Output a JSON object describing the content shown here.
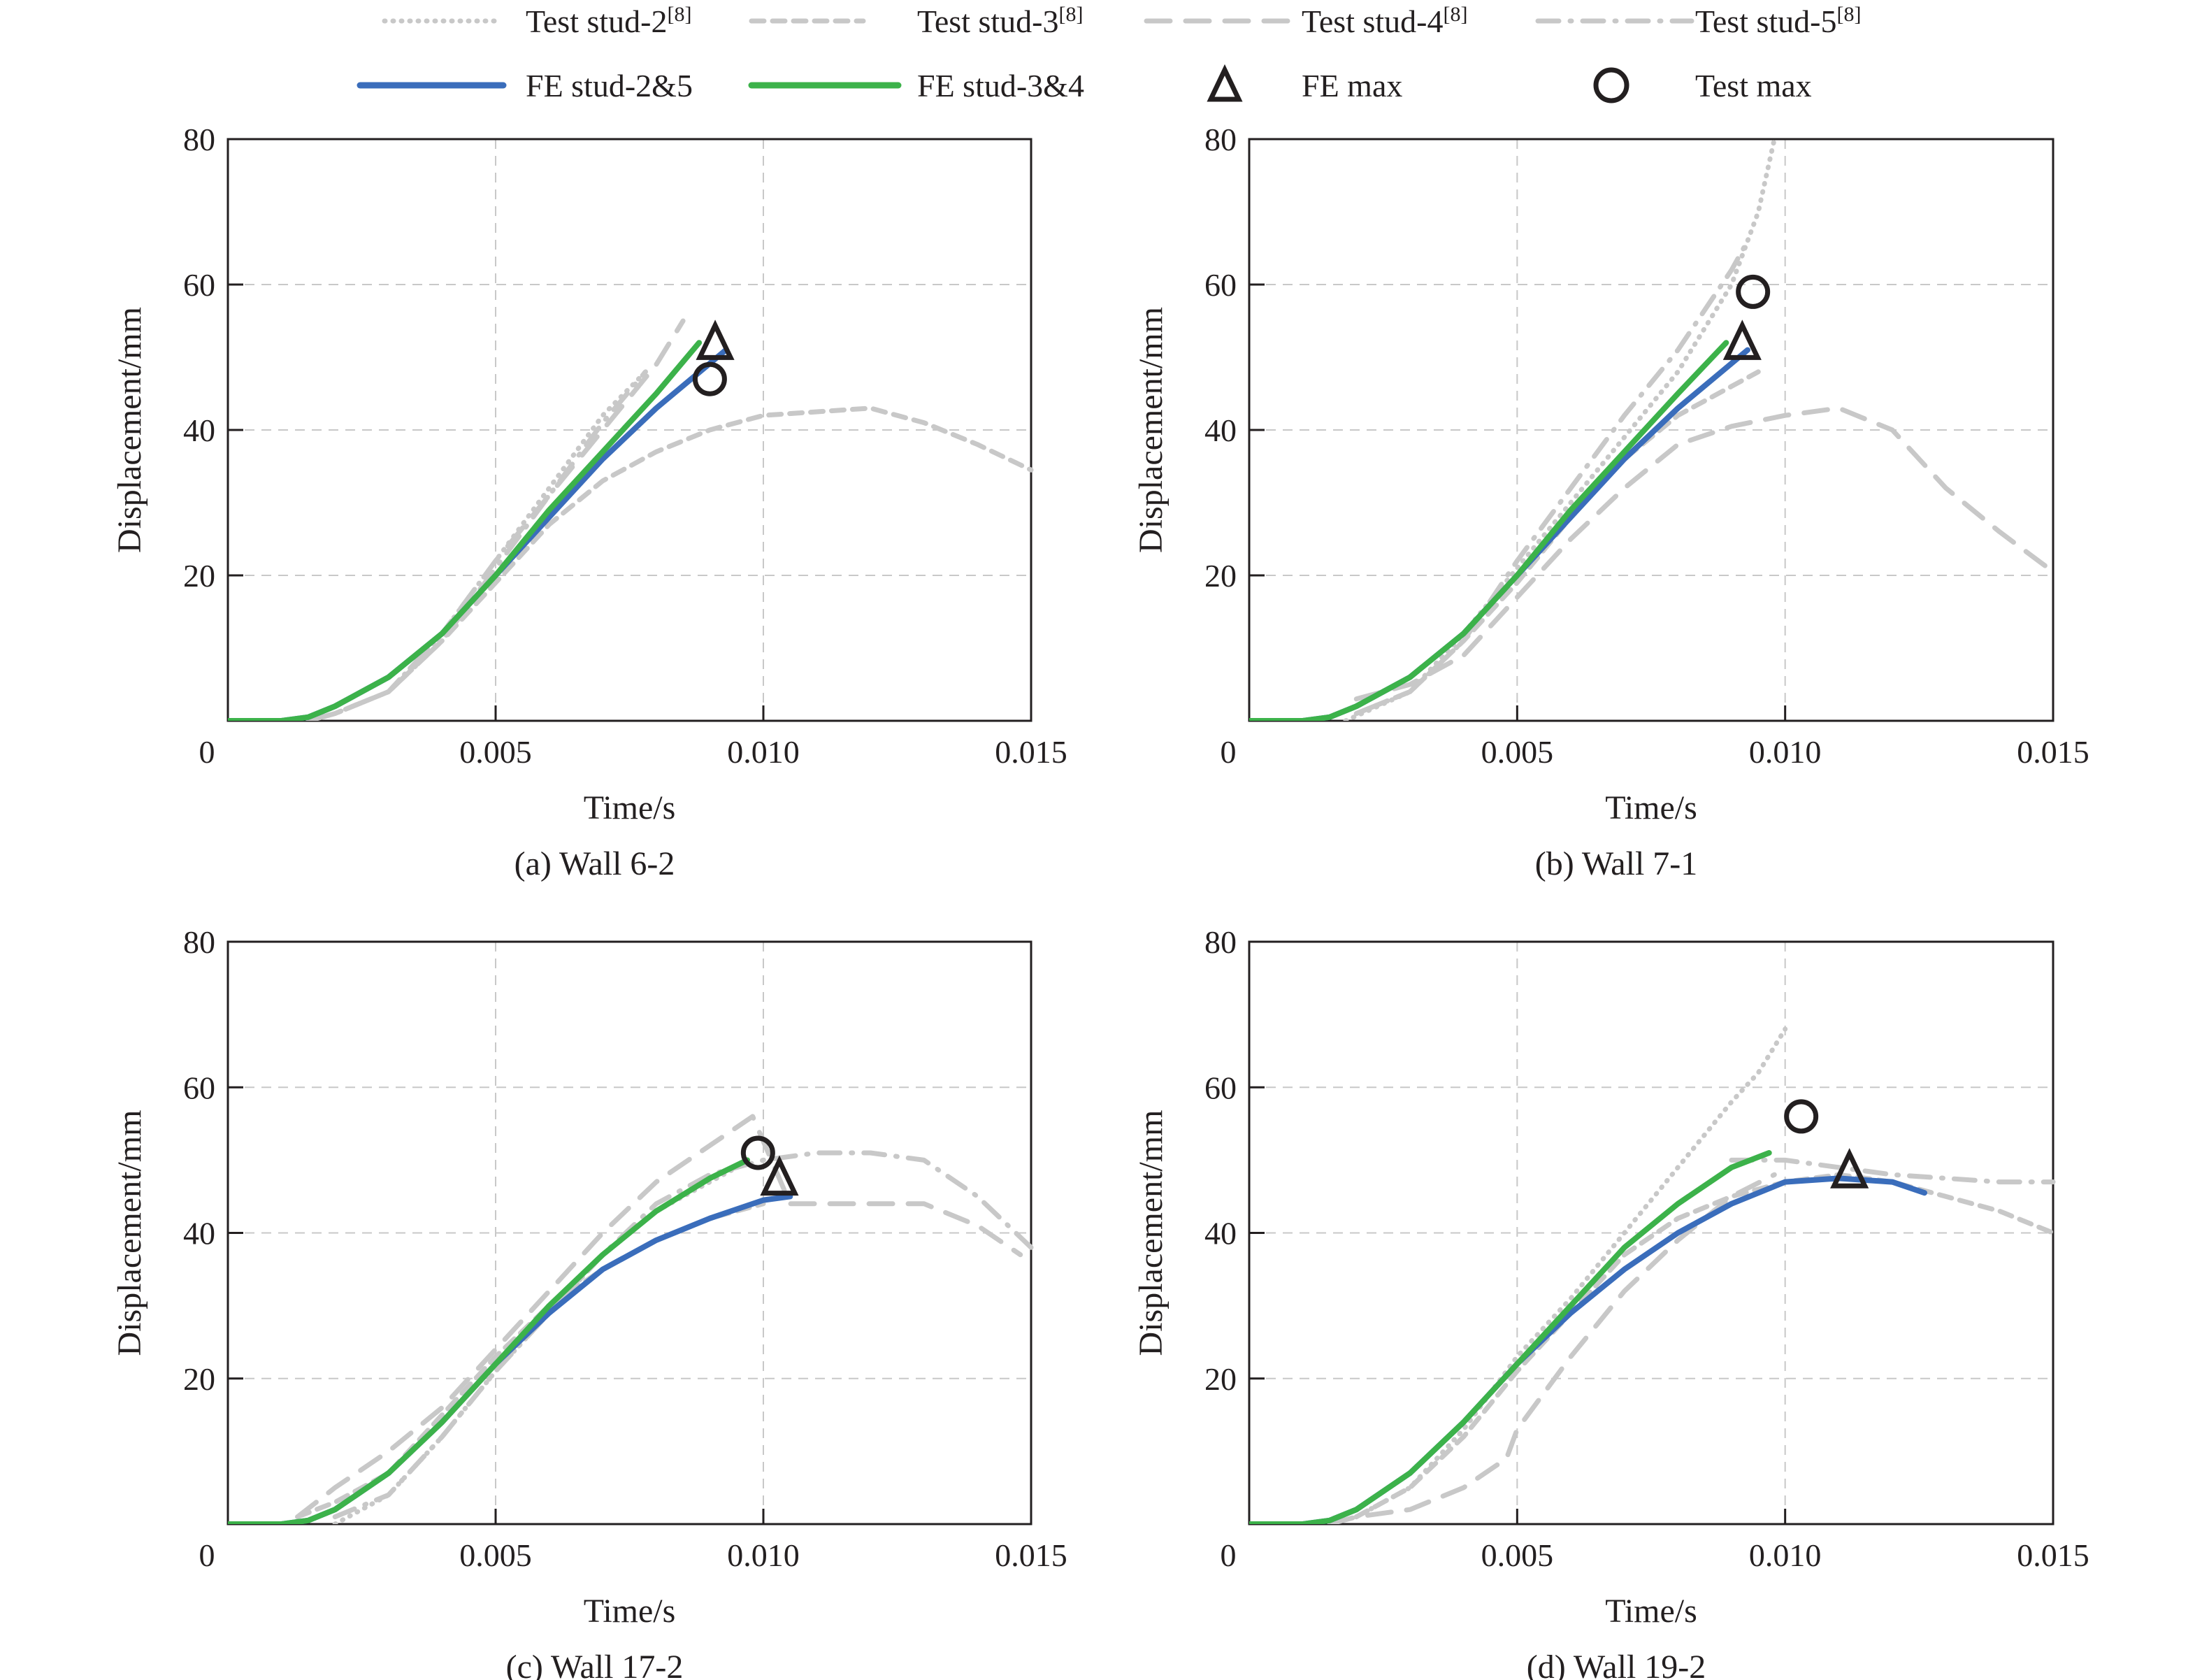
{
  "legend": {
    "items": [
      {
        "label": "Test stud-2",
        "sup": "[8]",
        "style": "dotted",
        "color": "#c8c8c8"
      },
      {
        "label": "Test stud-3",
        "sup": "[8]",
        "style": "short-dash",
        "color": "#c8c8c8"
      },
      {
        "label": "Test stud-4",
        "sup": "[8]",
        "style": "long-dash",
        "color": "#c8c8c8"
      },
      {
        "label": "Test stud-5",
        "sup": "[8]",
        "style": "dash-dot",
        "color": "#c8c8c8"
      },
      {
        "label": "FE stud-2&5",
        "sup": "",
        "style": "solid",
        "color": "#3a6dbb"
      },
      {
        "label": "FE stud-3&4",
        "sup": "",
        "style": "solid",
        "color": "#3cb24a"
      },
      {
        "label": "FE max",
        "sup": "",
        "style": "triangle-marker",
        "color": "#231f20"
      },
      {
        "label": "Test max",
        "sup": "",
        "style": "circle-marker",
        "color": "#231f20"
      }
    ]
  },
  "chart_data": [
    {
      "type": "line",
      "caption": "(a) Wall 6-2",
      "xlabel": "Time/s",
      "ylabel": "Displacement/mm",
      "xlim": [
        0,
        0.015
      ],
      "ylim": [
        0,
        80
      ],
      "xticks": [
        "0",
        "0.005",
        "0.010",
        "0.015"
      ],
      "yticks": [
        "20",
        "40",
        "60",
        "80"
      ],
      "grid": true,
      "series": [
        {
          "name": "Test stud-2",
          "style": "dotted",
          "x": [
            0.0015,
            0.002,
            0.003,
            0.004,
            0.005,
            0.006,
            0.007,
            0.0078
          ],
          "y": [
            0,
            1,
            4,
            12,
            22,
            32,
            42,
            48
          ]
        },
        {
          "name": "Test stud-3",
          "style": "short-dash",
          "x": [
            0.0015,
            0.002,
            0.003,
            0.004,
            0.005,
            0.006,
            0.007,
            0.008,
            0.009,
            0.01,
            0.011,
            0.012,
            0.013,
            0.014,
            0.015
          ],
          "y": [
            0,
            1,
            4,
            11,
            19,
            27,
            33,
            37,
            40,
            42,
            42.5,
            43,
            41,
            38,
            34.5
          ]
        },
        {
          "name": "Test stud-4",
          "style": "long-dash",
          "x": [
            0.0015,
            0.002,
            0.003,
            0.004,
            0.005,
            0.006,
            0.007,
            0.008,
            0.0085
          ],
          "y": [
            0,
            1,
            4,
            12,
            22,
            31,
            40,
            49,
            55
          ]
        },
        {
          "name": "Test stud-5",
          "style": "dash-dot",
          "x": [
            0.0015,
            0.002,
            0.003,
            0.004,
            0.005,
            0.006,
            0.007,
            0.0078
          ],
          "y": [
            0,
            1,
            4,
            11,
            21,
            31,
            41,
            48
          ]
        },
        {
          "name": "FE stud-2&5",
          "style": "solid",
          "x": [
            0,
            0.001,
            0.0015,
            0.002,
            0.003,
            0.004,
            0.005,
            0.006,
            0.007,
            0.008,
            0.0093
          ],
          "y": [
            0,
            0,
            0.5,
            2,
            6,
            12,
            20,
            28,
            36,
            43,
            51
          ]
        },
        {
          "name": "FE stud-3&4",
          "style": "solid",
          "x": [
            0,
            0.001,
            0.0015,
            0.002,
            0.003,
            0.004,
            0.005,
            0.006,
            0.007,
            0.008,
            0.0088
          ],
          "y": [
            0,
            0,
            0.5,
            2,
            6,
            12,
            20,
            29,
            37,
            45,
            52
          ]
        }
      ],
      "markers": {
        "fe_max": {
          "x": 0.0091,
          "y": 51.5
        },
        "test_max": {
          "x": 0.009,
          "y": 47
        }
      }
    },
    {
      "type": "line",
      "caption": "(b) Wall 7-1",
      "xlabel": "Time/s",
      "ylabel": "Displacement/mm",
      "xlim": [
        0,
        0.015
      ],
      "ylim": [
        0,
        80
      ],
      "xticks": [
        "0",
        "0.005",
        "0.010",
        "0.015"
      ],
      "yticks": [
        "20",
        "40",
        "60",
        "80"
      ],
      "grid": true,
      "series": [
        {
          "name": "Test stud-2",
          "style": "dotted",
          "x": [
            0.0018,
            0.003,
            0.004,
            0.005,
            0.006,
            0.007,
            0.008,
            0.009,
            0.0095,
            0.0098
          ],
          "y": [
            0,
            4,
            12,
            21,
            30,
            39,
            48,
            60,
            70,
            80
          ]
        },
        {
          "name": "Test stud-3",
          "style": "short-dash",
          "x": [
            0.002,
            0.003,
            0.004,
            0.005,
            0.006,
            0.007,
            0.008,
            0.009,
            0.0095
          ],
          "y": [
            1,
            4,
            11,
            19,
            28,
            36,
            42,
            46,
            48
          ]
        },
        {
          "name": "Test stud-4",
          "style": "long-dash",
          "x": [
            0.002,
            0.003,
            0.004,
            0.005,
            0.006,
            0.007,
            0.008,
            0.009,
            0.01,
            0.011,
            0.012,
            0.013,
            0.014,
            0.015
          ],
          "y": [
            3,
            5,
            9,
            17,
            25,
            32,
            38,
            40.5,
            42,
            43,
            40,
            32,
            26,
            20.5
          ]
        },
        {
          "name": "Test stud-5",
          "style": "dash-dot",
          "x": [
            0.002,
            0.003,
            0.004,
            0.005,
            0.006,
            0.007,
            0.008,
            0.009,
            0.0093
          ],
          "y": [
            1,
            4,
            11,
            22,
            32,
            42,
            51,
            62,
            66
          ]
        },
        {
          "name": "FE stud-2&5",
          "style": "solid",
          "x": [
            0,
            0.001,
            0.0015,
            0.002,
            0.003,
            0.004,
            0.005,
            0.006,
            0.007,
            0.008,
            0.0093
          ],
          "y": [
            0,
            0,
            0.5,
            2,
            6,
            12,
            20,
            28,
            36,
            43,
            51
          ]
        },
        {
          "name": "FE stud-3&4",
          "style": "solid",
          "x": [
            0,
            0.001,
            0.0015,
            0.002,
            0.003,
            0.004,
            0.005,
            0.006,
            0.007,
            0.008,
            0.0089
          ],
          "y": [
            0,
            0,
            0.5,
            2,
            6,
            12,
            20,
            29,
            37,
            45,
            52
          ]
        }
      ],
      "markers": {
        "fe_max": {
          "x": 0.0092,
          "y": 51.5
        },
        "test_max": {
          "x": 0.0094,
          "y": 59
        }
      }
    },
    {
      "type": "line",
      "caption": "(c) Wall 17-2",
      "xlabel": "Time/s",
      "ylabel": "Displacement/mm",
      "xlim": [
        0,
        0.015
      ],
      "ylim": [
        0,
        80
      ],
      "xticks": [
        "0",
        "0.005",
        "0.010",
        "0.015"
      ],
      "yticks": [
        "20",
        "40",
        "60",
        "80"
      ],
      "grid": true,
      "series": [
        {
          "name": "Test stud-2",
          "style": "dotted",
          "x": [
            0.002,
            0.003,
            0.004,
            0.005,
            0.006,
            0.007,
            0.008,
            0.009,
            0.0095
          ],
          "y": [
            0,
            4,
            12,
            21,
            29,
            37,
            43,
            47,
            49
          ]
        },
        {
          "name": "Test stud-3",
          "style": "short-dash",
          "x": [
            0.0013,
            0.002,
            0.003,
            0.004,
            0.005,
            0.006,
            0.007,
            0.008,
            0.009,
            0.01
          ],
          "y": [
            1,
            3,
            7,
            15,
            23,
            30,
            35,
            39,
            42,
            44
          ]
        },
        {
          "name": "Test stud-4",
          "style": "long-dash",
          "x": [
            0.0013,
            0.002,
            0.003,
            0.004,
            0.005,
            0.006,
            0.007,
            0.008,
            0.009,
            0.0098,
            0.0105,
            0.012,
            0.013,
            0.014,
            0.0148
          ],
          "y": [
            1,
            5,
            10,
            16,
            24,
            32,
            40,
            47,
            52,
            56,
            44,
            44,
            44,
            41,
            37
          ]
        },
        {
          "name": "Test stud-5",
          "style": "dash-dot",
          "x": [
            0.002,
            0.003,
            0.004,
            0.005,
            0.006,
            0.007,
            0.008,
            0.009,
            0.01,
            0.011,
            0.012,
            0.013,
            0.014,
            0.015
          ],
          "y": [
            1,
            4,
            12,
            21,
            29,
            37,
            44,
            48,
            50,
            51,
            51,
            50,
            45,
            38
          ]
        },
        {
          "name": "FE stud-2&5",
          "style": "solid",
          "x": [
            0,
            0.001,
            0.0015,
            0.002,
            0.003,
            0.004,
            0.005,
            0.006,
            0.007,
            0.008,
            0.009,
            0.01,
            0.0105
          ],
          "y": [
            0,
            0,
            0.5,
            2,
            7,
            14,
            22,
            29,
            35,
            39,
            42,
            44.5,
            45
          ]
        },
        {
          "name": "FE stud-3&4",
          "style": "solid",
          "x": [
            0,
            0.001,
            0.0015,
            0.002,
            0.003,
            0.004,
            0.005,
            0.006,
            0.007,
            0.008,
            0.009,
            0.0097
          ],
          "y": [
            0,
            0,
            0.5,
            2,
            7,
            14,
            22,
            30,
            37,
            43,
            47.5,
            50
          ]
        }
      ],
      "markers": {
        "fe_max": {
          "x": 0.0103,
          "y": 47
        },
        "test_max": {
          "x": 0.0099,
          "y": 51
        }
      }
    },
    {
      "type": "line",
      "caption": "(d) Wall 19-2",
      "xlabel": "Time/s",
      "ylabel": "Displacement/mm",
      "xlim": [
        0,
        0.015
      ],
      "ylim": [
        0,
        80
      ],
      "xticks": [
        "0",
        "0.005",
        "0.010",
        "0.015"
      ],
      "yticks": [
        "20",
        "40",
        "60",
        "80"
      ],
      "grid": true,
      "series": [
        {
          "name": "Test stud-2",
          "style": "dotted",
          "x": [
            0.002,
            0.003,
            0.004,
            0.005,
            0.006,
            0.007,
            0.008,
            0.009,
            0.0095,
            0.01
          ],
          "y": [
            1,
            5,
            13,
            23,
            31,
            40,
            49,
            58,
            62,
            68
          ]
        },
        {
          "name": "Test stud-3",
          "style": "short-dash",
          "x": [
            0.002,
            0.003,
            0.004,
            0.005,
            0.006,
            0.007,
            0.008,
            0.009,
            0.01,
            0.011,
            0.012,
            0.013,
            0.014,
            0.015
          ],
          "y": [
            1,
            5,
            12,
            21,
            29,
            37,
            42,
            45,
            47,
            48,
            47,
            45,
            43,
            40
          ]
        },
        {
          "name": "Test stud-4",
          "style": "long-dash",
          "x": [
            0.0015,
            0.002,
            0.003,
            0.004,
            0.0048,
            0.005,
            0.006,
            0.007,
            0.008,
            0.009,
            0.0098
          ],
          "y": [
            0,
            1,
            2,
            5,
            9,
            13,
            23,
            32,
            39,
            45,
            48
          ]
        },
        {
          "name": "Test stud-5",
          "style": "dash-dot",
          "x": [
            0.009,
            0.01,
            0.011,
            0.012,
            0.013,
            0.014,
            0.015
          ],
          "y": [
            50,
            50,
            49,
            48,
            47.5,
            47,
            47
          ]
        },
        {
          "name": "FE stud-2&5",
          "style": "solid",
          "x": [
            0,
            0.001,
            0.0015,
            0.002,
            0.003,
            0.004,
            0.005,
            0.006,
            0.007,
            0.008,
            0.009,
            0.01,
            0.011,
            0.012,
            0.0126
          ],
          "y": [
            0,
            0,
            0.5,
            2,
            7,
            14,
            22,
            29,
            35,
            40,
            44,
            47,
            47.5,
            47,
            45.5
          ]
        },
        {
          "name": "FE stud-3&4",
          "style": "solid",
          "x": [
            0,
            0.001,
            0.0015,
            0.002,
            0.003,
            0.004,
            0.005,
            0.006,
            0.007,
            0.008,
            0.009,
            0.0097
          ],
          "y": [
            0,
            0,
            0.5,
            2,
            7,
            14,
            22,
            30,
            38,
            44,
            49,
            51
          ]
        }
      ],
      "markers": {
        "fe_max": {
          "x": 0.0112,
          "y": 48
        },
        "test_max": {
          "x": 0.0103,
          "y": 56
        }
      }
    }
  ]
}
